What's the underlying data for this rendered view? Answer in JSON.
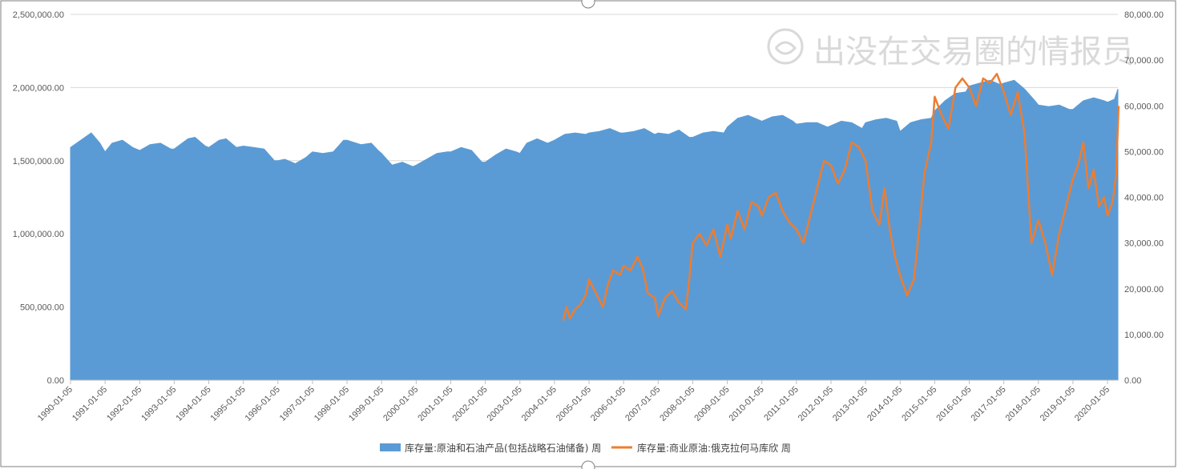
{
  "chart_data": {
    "type": "area+line",
    "watermark": "出没在交易圈的情报员",
    "grid": "horizontal",
    "legend_position": "bottom",
    "x_tick_labels": [
      "1990-01-05",
      "1991-01-05",
      "1992-01-05",
      "1993-01-05",
      "1994-01-05",
      "1995-01-05",
      "1996-01-05",
      "1997-01-05",
      "1998-01-05",
      "1999-01-05",
      "2000-01-05",
      "2001-01-05",
      "2002-01-05",
      "2003-01-05",
      "2004-01-05",
      "2005-01-05",
      "2006-01-05",
      "2007-01-05",
      "2008-01-05",
      "2009-01-05",
      "2010-01-05",
      "2011-01-05",
      "2012-01-05",
      "2013-01-05",
      "2014-01-05",
      "2015-01-05",
      "2016-01-05",
      "2017-01-05",
      "2018-01-05",
      "2019-01-05",
      "2020-01-05"
    ],
    "y_left": {
      "range": [
        0,
        2500000
      ],
      "tick_labels": [
        "0.00",
        "500,000.00",
        "1,000,000.00",
        "1,500,000.00",
        "2,000,000.00",
        "2,500,000.00"
      ]
    },
    "y_right": {
      "range": [
        0,
        80000
      ],
      "tick_labels": [
        "0.00",
        "10,000.00",
        "20,000.00",
        "30,000.00",
        "40,000.00",
        "50,000.00",
        "60,000.00",
        "70,000.00",
        "80,000.00"
      ]
    },
    "series": [
      {
        "name": "库存量:原油和石油产品(包括战略石油储备) 周",
        "type": "area",
        "axis": "left",
        "color": "#5b9bd5",
        "x": [
          1990.0,
          1990.3,
          1990.6,
          1990.85,
          1991.0,
          1991.2,
          1991.5,
          1991.8,
          1992.0,
          1992.3,
          1992.6,
          1992.9,
          1993.0,
          1993.4,
          1993.6,
          1993.9,
          1994.0,
          1994.3,
          1994.5,
          1994.8,
          1995.0,
          1995.3,
          1995.6,
          1995.9,
          1996.0,
          1996.2,
          1996.5,
          1996.8,
          1997.0,
          1997.3,
          1997.6,
          1997.9,
          1998.0,
          1998.4,
          1998.7,
          1998.9,
          1999.0,
          1999.3,
          1999.6,
          1999.9,
          2000.0,
          2000.3,
          2000.6,
          2000.9,
          2001.0,
          2001.3,
          2001.6,
          2001.9,
          2002.0,
          2002.3,
          2002.6,
          2002.9,
          2003.0,
          2003.2,
          2003.5,
          2003.8,
          2004.0,
          2004.3,
          2004.6,
          2004.9,
          2005.0,
          2005.3,
          2005.6,
          2005.9,
          2006.0,
          2006.3,
          2006.6,
          2006.9,
          2007.0,
          2007.3,
          2007.6,
          2007.9,
          2008.0,
          2008.3,
          2008.6,
          2008.9,
          2009.0,
          2009.3,
          2009.6,
          2009.9,
          2010.0,
          2010.3,
          2010.6,
          2010.9,
          2011.0,
          2011.3,
          2011.6,
          2011.9,
          2012.0,
          2012.3,
          2012.6,
          2012.9,
          2013.0,
          2013.3,
          2013.6,
          2013.9,
          2014.0,
          2014.3,
          2014.6,
          2014.9,
          2015.0,
          2015.3,
          2015.6,
          2015.9,
          2016.0,
          2016.3,
          2016.6,
          2016.9,
          2017.0,
          2017.3,
          2017.6,
          2017.9,
          2018.0,
          2018.3,
          2018.6,
          2018.9,
          2019.0,
          2019.3,
          2019.6,
          2019.9,
          2020.0,
          2020.2,
          2020.3
        ],
        "values": [
          1590000,
          1640000,
          1690000,
          1620000,
          1560000,
          1620000,
          1640000,
          1590000,
          1570000,
          1610000,
          1620000,
          1580000,
          1580000,
          1650000,
          1660000,
          1600000,
          1590000,
          1640000,
          1650000,
          1590000,
          1600000,
          1590000,
          1580000,
          1500000,
          1500000,
          1510000,
          1480000,
          1520000,
          1560000,
          1550000,
          1560000,
          1640000,
          1640000,
          1610000,
          1620000,
          1570000,
          1550000,
          1470000,
          1490000,
          1460000,
          1470000,
          1510000,
          1550000,
          1560000,
          1560000,
          1590000,
          1570000,
          1490000,
          1490000,
          1540000,
          1580000,
          1560000,
          1550000,
          1620000,
          1650000,
          1620000,
          1640000,
          1680000,
          1690000,
          1680000,
          1690000,
          1700000,
          1720000,
          1690000,
          1690000,
          1700000,
          1720000,
          1680000,
          1690000,
          1680000,
          1710000,
          1660000,
          1660000,
          1690000,
          1700000,
          1690000,
          1730000,
          1790000,
          1810000,
          1780000,
          1770000,
          1800000,
          1810000,
          1770000,
          1750000,
          1760000,
          1760000,
          1730000,
          1740000,
          1770000,
          1760000,
          1720000,
          1760000,
          1780000,
          1790000,
          1770000,
          1700000,
          1760000,
          1780000,
          1790000,
          1840000,
          1910000,
          1960000,
          1970000,
          2010000,
          2030000,
          2050000,
          2020000,
          2030000,
          2050000,
          1990000,
          1910000,
          1880000,
          1870000,
          1880000,
          1850000,
          1850000,
          1910000,
          1930000,
          1910000,
          1900000,
          1920000,
          1990000
        ]
      },
      {
        "name": "库存量:商业原油:俄克拉何马库欣 周",
        "type": "line",
        "axis": "right",
        "color": "#ed7d31",
        "x": [
          2004.25,
          2004.35,
          2004.45,
          2004.6,
          2004.75,
          2004.9,
          2005.0,
          2005.2,
          2005.4,
          2005.55,
          2005.7,
          2005.9,
          2006.0,
          2006.2,
          2006.4,
          2006.55,
          2006.7,
          2006.9,
          2007.0,
          2007.2,
          2007.4,
          2007.6,
          2007.8,
          2007.9,
          2008.0,
          2008.2,
          2008.4,
          2008.6,
          2008.8,
          2009.0,
          2009.1,
          2009.3,
          2009.5,
          2009.7,
          2009.9,
          2010.0,
          2010.2,
          2010.4,
          2010.6,
          2010.8,
          2011.0,
          2011.2,
          2011.4,
          2011.6,
          2011.8,
          2012.0,
          2012.2,
          2012.4,
          2012.6,
          2012.8,
          2013.0,
          2013.2,
          2013.4,
          2013.55,
          2013.7,
          2013.85,
          2014.0,
          2014.2,
          2014.4,
          2014.55,
          2014.7,
          2014.9,
          2015.0,
          2015.2,
          2015.4,
          2015.6,
          2015.8,
          2016.0,
          2016.2,
          2016.4,
          2016.6,
          2016.8,
          2017.0,
          2017.2,
          2017.4,
          2017.6,
          2017.8,
          2018.0,
          2018.2,
          2018.4,
          2018.6,
          2018.8,
          2019.0,
          2019.15,
          2019.3,
          2019.45,
          2019.6,
          2019.75,
          2019.9,
          2020.0,
          2020.15,
          2020.25,
          2020.32
        ],
        "values": [
          13000,
          16000,
          13500,
          15500,
          16500,
          18500,
          22000,
          19000,
          16000,
          21000,
          24000,
          23000,
          25000,
          24000,
          27000,
          24500,
          19000,
          18000,
          14000,
          18000,
          19500,
          17000,
          15500,
          22000,
          30000,
          32000,
          29500,
          33000,
          27000,
          34000,
          31000,
          37000,
          33000,
          39000,
          38000,
          36000,
          40000,
          41000,
          37000,
          34500,
          33000,
          30000,
          36000,
          42000,
          48000,
          47000,
          43000,
          46000,
          52000,
          51000,
          48000,
          37000,
          34000,
          42000,
          33000,
          27000,
          23000,
          18500,
          22000,
          33000,
          45000,
          52000,
          62000,
          58000,
          55000,
          64000,
          66000,
          64000,
          60000,
          66000,
          65000,
          67000,
          63000,
          58000,
          63000,
          54000,
          30000,
          35000,
          30000,
          23000,
          32000,
          38000,
          44000,
          47000,
          52000,
          42000,
          46000,
          38000,
          40000,
          36000,
          39000,
          45000,
          60000
        ]
      }
    ]
  }
}
